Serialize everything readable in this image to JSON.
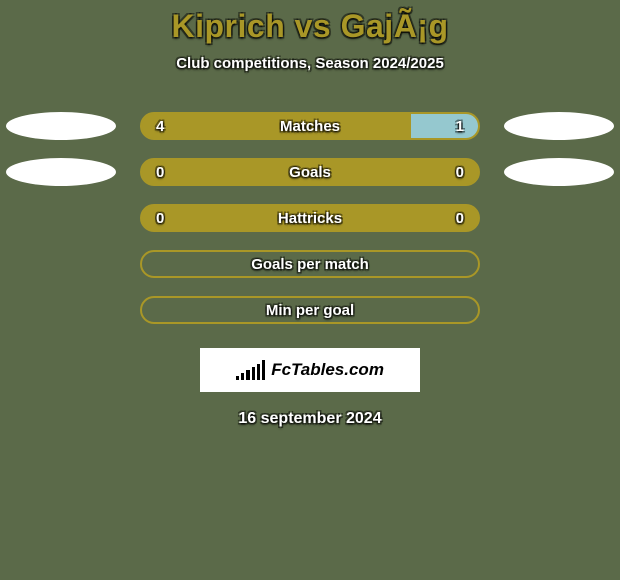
{
  "background_color": "#5b6a49",
  "title": "Kiprich vs GajÃ¡g",
  "title_color": "#a99727",
  "title_fontsize": 32,
  "subtitle": "Club competitions, Season 2024/2025",
  "subtitle_fontsize": 15,
  "ellipse_color": "#ffffff",
  "bar_colors": {
    "left": "#a99727",
    "right": "#95c8cf",
    "border": "#a99727",
    "empty_fill": "#5b6a49"
  },
  "text_shadow_color": "rgba(0,0,0,0.45)",
  "label_text_color": "#ffffff",
  "rows": [
    {
      "label": "Matches",
      "left_value": "4",
      "right_value": "1",
      "left_pct": 80,
      "right_pct": 20,
      "show_ellipses": true,
      "show_values": true,
      "filled_bg": true
    },
    {
      "label": "Goals",
      "left_value": "0",
      "right_value": "0",
      "left_pct": 0,
      "right_pct": 0,
      "show_ellipses": true,
      "show_values": true,
      "filled_bg": true
    },
    {
      "label": "Hattricks",
      "left_value": "0",
      "right_value": "0",
      "left_pct": 0,
      "right_pct": 0,
      "show_ellipses": false,
      "show_values": true,
      "filled_bg": true
    },
    {
      "label": "Goals per match",
      "left_value": "",
      "right_value": "",
      "left_pct": 0,
      "right_pct": 0,
      "show_ellipses": false,
      "show_values": false,
      "filled_bg": false
    },
    {
      "label": "Min per goal",
      "left_value": "",
      "right_value": "",
      "left_pct": 0,
      "right_pct": 0,
      "show_ellipses": false,
      "show_values": false,
      "filled_bg": false
    }
  ],
  "logo_text": "FcTables.com",
  "logo_bar_heights": [
    4,
    7,
    10,
    13,
    16,
    20
  ],
  "date": "16 september 2024"
}
